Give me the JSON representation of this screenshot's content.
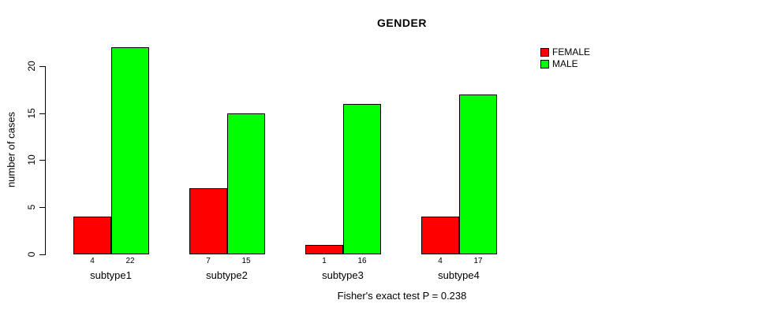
{
  "chart_data": {
    "type": "bar",
    "title": "GENDER",
    "xlabel": "",
    "ylabel": "number of cases",
    "categories": [
      "subtype1",
      "subtype2",
      "subtype3",
      "subtype4"
    ],
    "series": [
      {
        "name": "FEMALE",
        "color": "#ff0000",
        "values": [
          4,
          7,
          1,
          4
        ]
      },
      {
        "name": "MALE",
        "color": "#00ff00",
        "values": [
          22,
          15,
          16,
          17
        ]
      }
    ],
    "yticks": [
      0,
      5,
      10,
      15,
      20
    ],
    "ylim": [
      0,
      22
    ],
    "grid": false,
    "legend_position": "top-right",
    "bar_value_labels_shown": true,
    "footnote": "Fisher's exact test P = 0.238"
  }
}
